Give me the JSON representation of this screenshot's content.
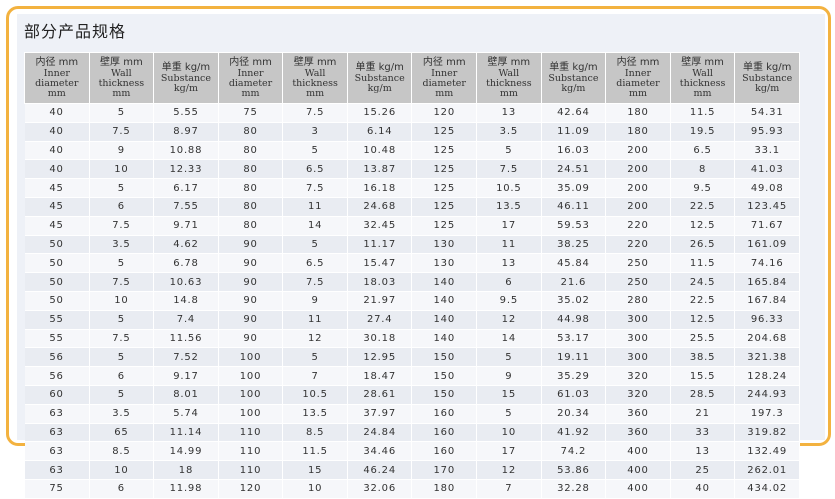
{
  "title": "部分产品规格",
  "headers": [
    {
      "cn": "内径 mm",
      "en": [
        "Inner",
        "diameter",
        "mm"
      ]
    },
    {
      "cn": "壁厚 mm",
      "en": [
        "Wall",
        "thickness",
        "mm"
      ]
    },
    {
      "cn": "单重 kg/m",
      "en": [
        "Substance",
        "kg/m"
      ]
    },
    {
      "cn": "内径 mm",
      "en": [
        "Inner",
        "diameter",
        "mm"
      ]
    },
    {
      "cn": "壁厚 mm",
      "en": [
        "Wall",
        "thickness",
        "mm"
      ]
    },
    {
      "cn": "单重 kg/m",
      "en": [
        "Substance",
        "kg/m"
      ]
    },
    {
      "cn": "内径 mm",
      "en": [
        "Inner",
        "diameter",
        "mm"
      ]
    },
    {
      "cn": "壁厚 mm",
      "en": [
        "Wall",
        "thickness",
        "mm"
      ]
    },
    {
      "cn": "单重 kg/m",
      "en": [
        "Substance",
        "kg/m"
      ]
    },
    {
      "cn": "内径 mm",
      "en": [
        "Inner",
        "diameter",
        "mm"
      ]
    },
    {
      "cn": "壁厚 mm",
      "en": [
        "Wall",
        "thickness",
        "mm"
      ]
    },
    {
      "cn": "单重 kg/m",
      "en": [
        "Substance",
        "kg/m"
      ]
    }
  ],
  "rows": [
    [
      "40",
      "5",
      "5.55",
      "75",
      "7.5",
      "15.26",
      "120",
      "13",
      "42.64",
      "180",
      "11.5",
      "54.31"
    ],
    [
      "40",
      "7.5",
      "8.97",
      "80",
      "3",
      "6.14",
      "125",
      "3.5",
      "11.09",
      "180",
      "19.5",
      "95.93"
    ],
    [
      "40",
      "9",
      "10.88",
      "80",
      "5",
      "10.48",
      "125",
      "5",
      "16.03",
      "200",
      "6.5",
      "33.1"
    ],
    [
      "40",
      "10",
      "12.33",
      "80",
      "6.5",
      "13.87",
      "125",
      "7.5",
      "24.51",
      "200",
      "8",
      "41.03"
    ],
    [
      "45",
      "5",
      "6.17",
      "80",
      "7.5",
      "16.18",
      "125",
      "10.5",
      "35.09",
      "200",
      "9.5",
      "49.08"
    ],
    [
      "45",
      "6",
      "7.55",
      "80",
      "11",
      "24.68",
      "125",
      "13.5",
      "46.11",
      "200",
      "22.5",
      "123.45"
    ],
    [
      "45",
      "7.5",
      "9.71",
      "80",
      "14",
      "32.45",
      "125",
      "17",
      "59.53",
      "220",
      "12.5",
      "71.67"
    ],
    [
      "50",
      "3.5",
      "4.62",
      "90",
      "5",
      "11.17",
      "130",
      "11",
      "38.25",
      "220",
      "26.5",
      "161.09"
    ],
    [
      "50",
      "5",
      "6.78",
      "90",
      "6.5",
      "15.47",
      "130",
      "13",
      "45.84",
      "250",
      "11.5",
      "74.16"
    ],
    [
      "50",
      "7.5",
      "10.63",
      "90",
      "7.5",
      "18.03",
      "140",
      "6",
      "21.6",
      "250",
      "24.5",
      "165.84"
    ],
    [
      "50",
      "10",
      "14.8",
      "90",
      "9",
      "21.97",
      "140",
      "9.5",
      "35.02",
      "280",
      "22.5",
      "167.84"
    ],
    [
      "55",
      "5",
      "7.4",
      "90",
      "11",
      "27.4",
      "140",
      "12",
      "44.98",
      "300",
      "12.5",
      "96.33"
    ],
    [
      "55",
      "7.5",
      "11.56",
      "90",
      "12",
      "30.18",
      "140",
      "14",
      "53.17",
      "300",
      "25.5",
      "204.68"
    ],
    [
      "56",
      "5",
      "7.52",
      "100",
      "5",
      "12.95",
      "150",
      "5",
      "19.11",
      "300",
      "38.5",
      "321.38"
    ],
    [
      "56",
      "6",
      "9.17",
      "100",
      "7",
      "18.47",
      "150",
      "9",
      "35.29",
      "320",
      "15.5",
      "128.24"
    ],
    [
      "60",
      "5",
      "8.01",
      "100",
      "10.5",
      "28.61",
      "150",
      "15",
      "61.03",
      "320",
      "28.5",
      "244.93"
    ],
    [
      "63",
      "3.5",
      "5.74",
      "100",
      "13.5",
      "37.97",
      "160",
      "5",
      "20.34",
      "360",
      "21",
      "197.3"
    ],
    [
      "63",
      "65",
      "11.14",
      "110",
      "8.5",
      "24.84",
      "160",
      "10",
      "41.92",
      "360",
      "33",
      "319.82"
    ],
    [
      "63",
      "8.5",
      "14.99",
      "110",
      "11.5",
      "34.46",
      "160",
      "17",
      "74.2",
      "400",
      "13",
      "132.49"
    ],
    [
      "63",
      "10",
      "18",
      "110",
      "15",
      "46.24",
      "170",
      "12",
      "53.86",
      "400",
      "25",
      "262.01"
    ],
    [
      "75",
      "6",
      "11.98",
      "120",
      "10",
      "32.06",
      "180",
      "7",
      "32.28",
      "400",
      "40",
      "434.02"
    ]
  ]
}
